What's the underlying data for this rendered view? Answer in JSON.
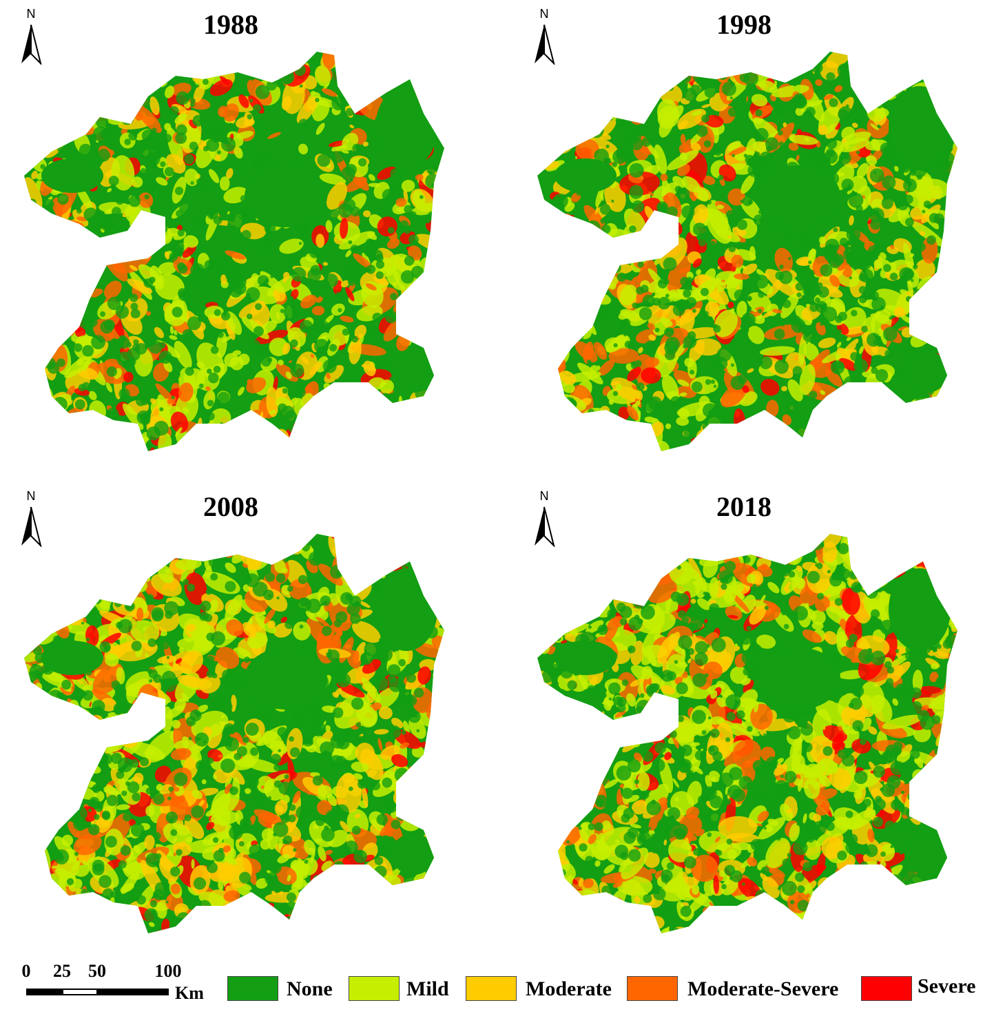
{
  "panels": [
    {
      "title": "1988",
      "north_label": "N"
    },
    {
      "title": "1998",
      "north_label": "N"
    },
    {
      "title": "2008",
      "north_label": "N"
    },
    {
      "title": "2018",
      "north_label": "N"
    }
  ],
  "scale_bar": {
    "ticks": [
      "0",
      "25",
      "50",
      "100"
    ],
    "unit": "Km"
  },
  "legend": {
    "items": [
      {
        "label": "None",
        "color": "#139e13"
      },
      {
        "label": "Mild",
        "color": "#c6ef00"
      },
      {
        "label": "Moderate",
        "color": "#ffcc00"
      },
      {
        "label": "Moderate-Severe",
        "color": "#ff6600"
      },
      {
        "label": "Severe",
        "color": "#ff0000"
      }
    ]
  }
}
